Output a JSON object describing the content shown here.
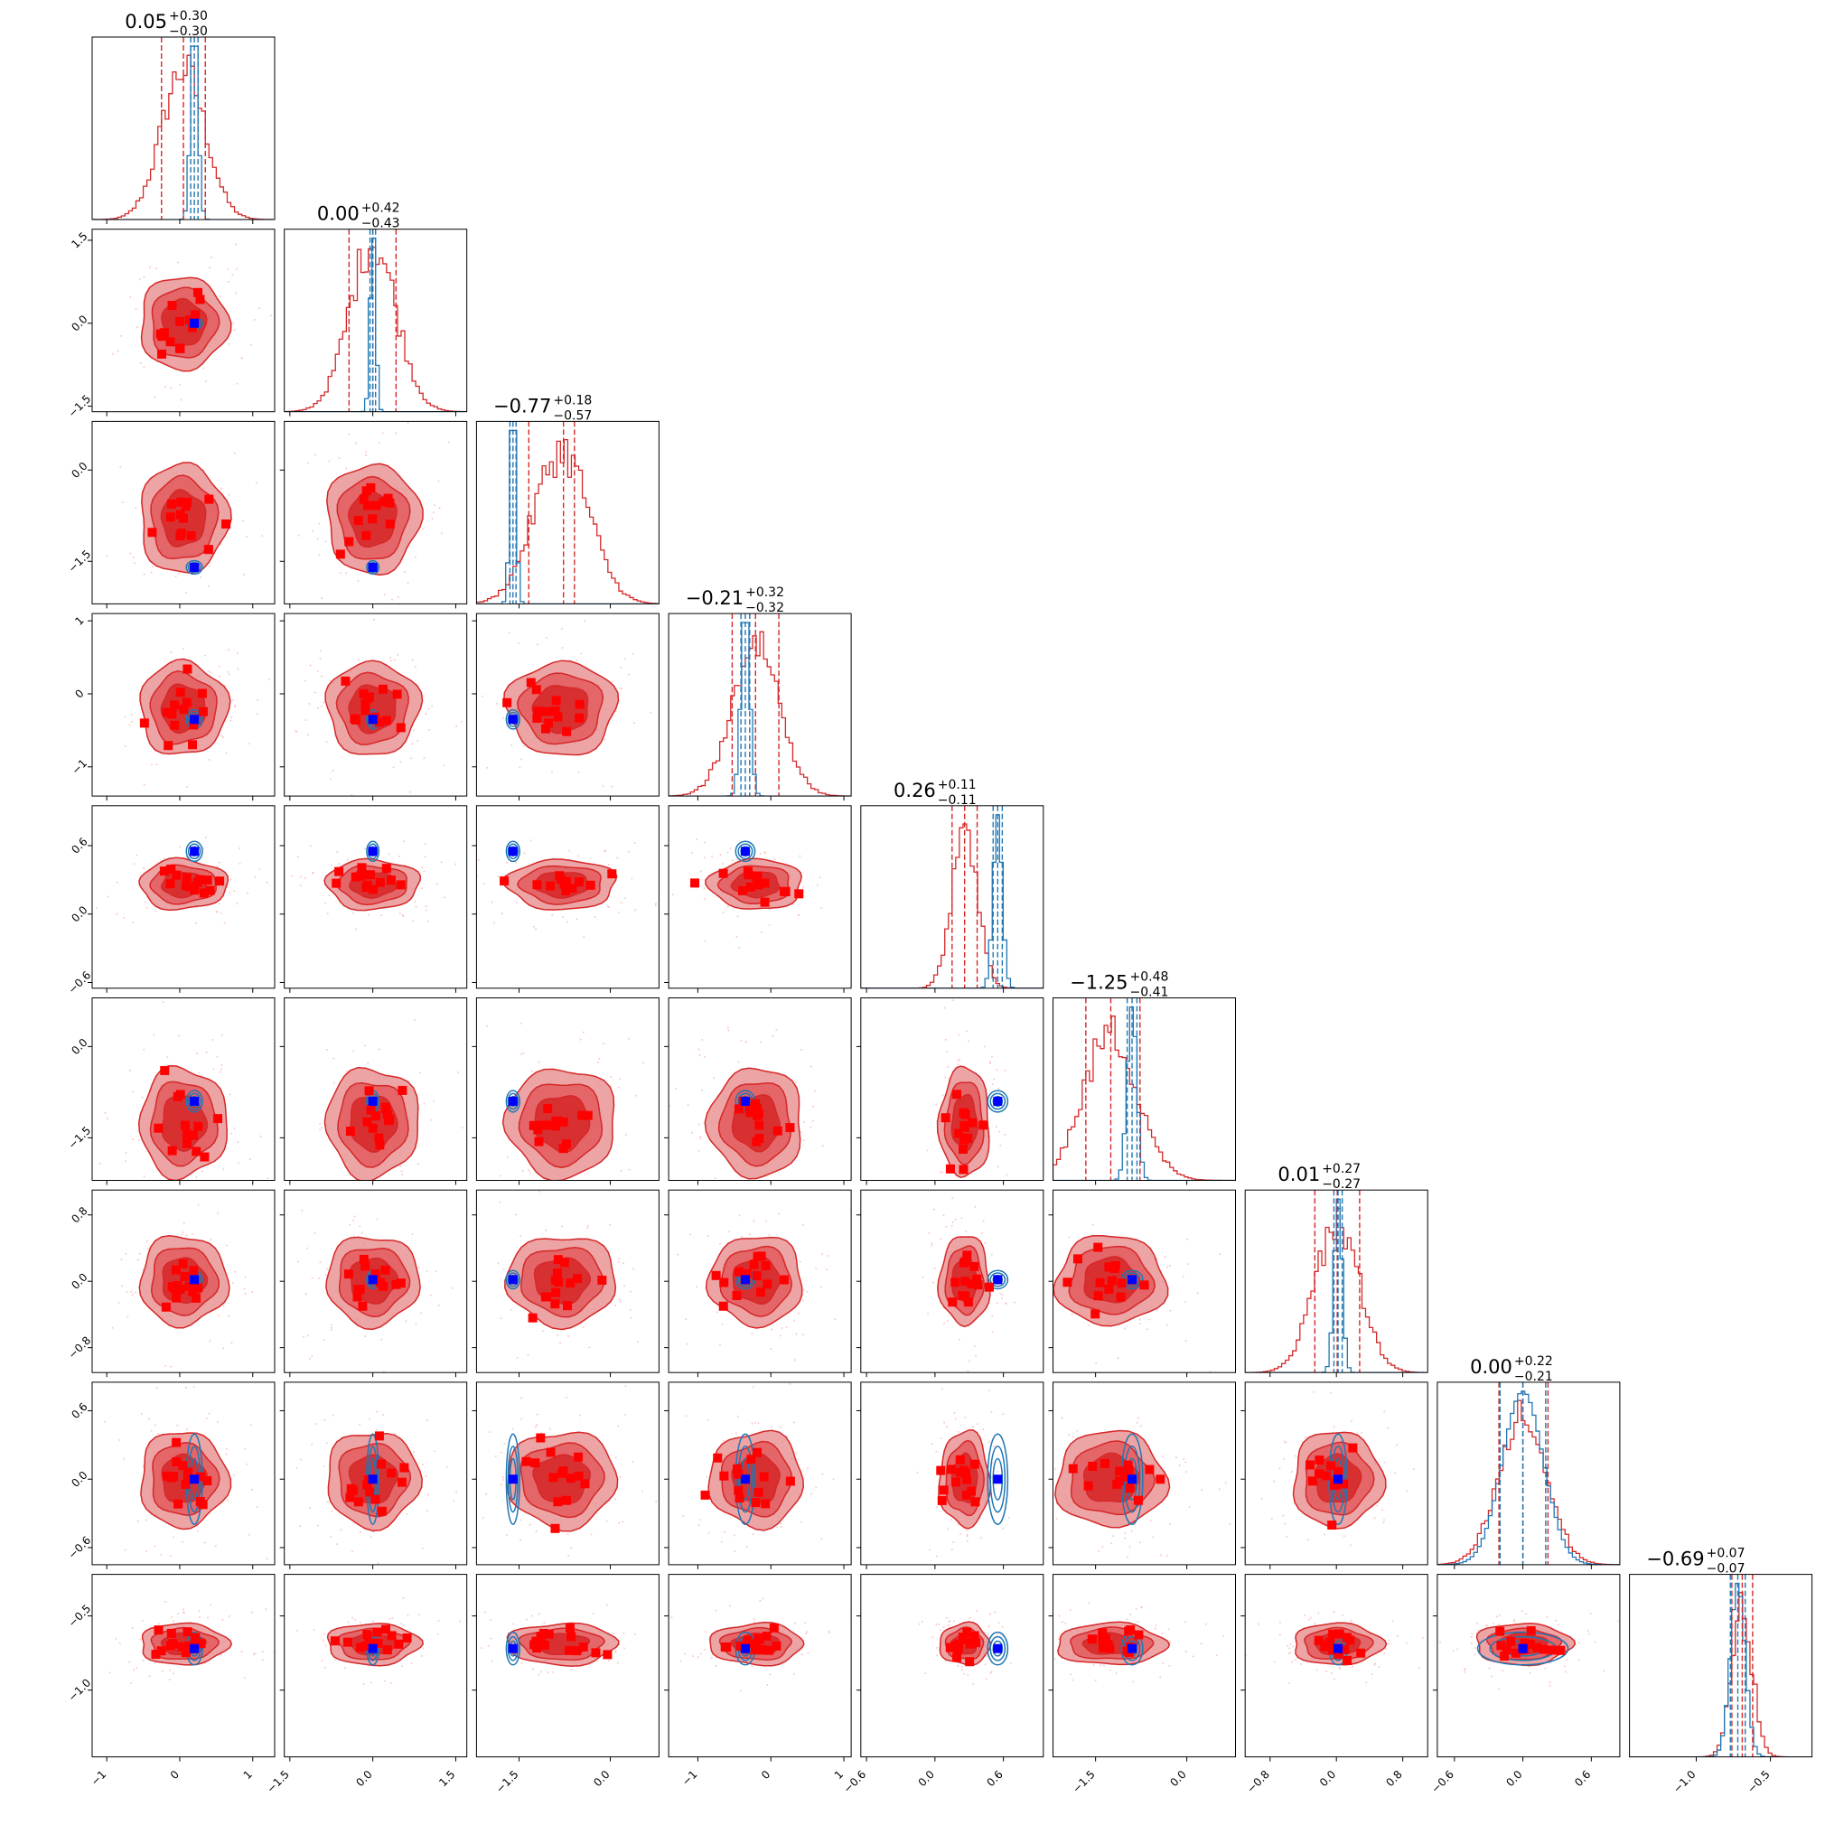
{
  "colors": {
    "prior": "#d62728",
    "posterior": "#1f77b4",
    "marker_red": "#ff0000",
    "truth_blue": "#0000ff",
    "contour_fill_inner": "#d62728",
    "contour_fill_outer": "#e99495"
  },
  "chart_data": {
    "type": "corner",
    "n_params": 9,
    "titles": [
      {
        "median": "0.05",
        "plus": "+0.30",
        "minus": "−0.30"
      },
      {
        "median": "0.00",
        "plus": "+0.42",
        "minus": "−0.43"
      },
      {
        "median": "−0.77",
        "plus": "+0.18",
        "minus": "−0.57"
      },
      {
        "median": "−0.21",
        "plus": "+0.32",
        "minus": "−0.32"
      },
      {
        "median": "0.26",
        "plus": "+0.11",
        "minus": "−0.11"
      },
      {
        "median": "−1.25",
        "plus": "+0.48",
        "minus": "−0.41"
      },
      {
        "median": "0.01",
        "plus": "+0.27",
        "minus": "−0.27"
      },
      {
        "median": "0.00",
        "plus": "+0.22",
        "minus": "−0.21"
      },
      {
        "median": "−0.69",
        "plus": "+0.07",
        "minus": "−0.07"
      }
    ],
    "ranges": [
      [
        -1.2,
        1.3
      ],
      [
        -1.6,
        1.7
      ],
      [
        -2.2,
        0.8
      ],
      [
        -1.4,
        1.1
      ],
      [
        -0.65,
        0.95
      ],
      [
        -2.2,
        0.8
      ],
      [
        -1.1,
        1.1
      ],
      [
        -0.75,
        0.85
      ],
      [
        -1.45,
        -0.22
      ]
    ],
    "ticks": [
      {
        "values": [
          -1,
          0,
          1
        ],
        "labels": [
          "−1",
          "0",
          "1"
        ]
      },
      {
        "values": [
          -1.5,
          0.0,
          1.5
        ],
        "labels": [
          "−1.5",
          "0.0",
          "1.5"
        ]
      },
      {
        "values": [
          -1.5,
          0.0
        ],
        "labels": [
          "−1.5",
          "0.0"
        ]
      },
      {
        "values": [
          -1,
          0,
          1
        ],
        "labels": [
          "−1",
          "0",
          "1"
        ]
      },
      {
        "values": [
          -0.6,
          0.0,
          0.6
        ],
        "labels": [
          "−0.6",
          "0.0",
          "0.6"
        ]
      },
      {
        "values": [
          -1.5,
          0.0
        ],
        "labels": [
          "−1.5",
          "0.0"
        ]
      },
      {
        "values": [
          -0.8,
          0.0,
          0.8
        ],
        "labels": [
          "−0.8",
          "0.0",
          "0.8"
        ]
      },
      {
        "values": [
          -0.6,
          0.0,
          0.6
        ],
        "labels": [
          "−0.6",
          "0.0",
          "0.6"
        ]
      },
      {
        "values": [
          -1.0,
          -0.5
        ],
        "labels": [
          "−1.0",
          "−0.5"
        ]
      }
    ],
    "prior": {
      "centers": [
        0.05,
        0.0,
        -0.8,
        -0.2,
        0.26,
        -1.25,
        0.01,
        0.0,
        -0.69
      ],
      "sigmas": [
        0.3,
        0.42,
        0.45,
        0.32,
        0.11,
        0.45,
        0.27,
        0.21,
        0.07
      ]
    },
    "posterior": {
      "centers": [
        0.2,
        0.0,
        -1.6,
        -0.35,
        0.55,
        -0.9,
        0.02,
        0.0,
        -0.72
      ],
      "sigmas": [
        0.05,
        0.05,
        0.05,
        0.06,
        0.04,
        0.08,
        0.05,
        0.18,
        0.05
      ]
    },
    "truths": [
      0.2,
      0.0,
      -1.6,
      -0.35,
      0.55,
      -0.9,
      0.02,
      0.0,
      -0.72
    ],
    "quantile_lines": {
      "prior": [
        [
          -0.25,
          0.05,
          0.35
        ],
        [
          -0.43,
          0.0,
          0.42
        ],
        [
          -1.34,
          -0.77,
          -0.59
        ],
        [
          -0.53,
          -0.21,
          0.11
        ],
        [
          0.15,
          0.26,
          0.37
        ],
        [
          -1.66,
          -1.25,
          -0.77
        ],
        [
          -0.26,
          0.01,
          0.28
        ],
        [
          -0.21,
          0.0,
          0.22
        ],
        [
          -0.76,
          -0.69,
          -0.62
        ]
      ],
      "posterior": [
        [
          0.15,
          0.2,
          0.25
        ],
        [
          -0.05,
          0.0,
          0.05
        ],
        [
          -1.65,
          -1.6,
          -1.55
        ],
        [
          -0.41,
          -0.35,
          -0.29
        ],
        [
          0.51,
          0.55,
          0.59
        ],
        [
          -0.98,
          -0.9,
          -0.82
        ],
        [
          -0.03,
          0.02,
          0.07
        ],
        [
          -0.2,
          0.0,
          0.2
        ],
        [
          -0.77,
          -0.72,
          -0.67
        ]
      ]
    }
  }
}
